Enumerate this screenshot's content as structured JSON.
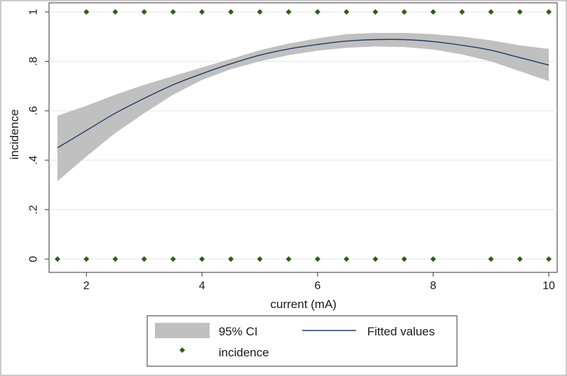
{
  "chart_data": {
    "type": "line",
    "xlabel": "current (mA)",
    "ylabel": "incidence",
    "xlim": [
      1.5,
      10
    ],
    "ylim": [
      0,
      1
    ],
    "x_ticks": [
      2,
      4,
      6,
      8,
      10
    ],
    "y_ticks": [
      {
        "value": 0,
        "label": "0"
      },
      {
        "value": 0.2,
        "label": ".2"
      },
      {
        "value": 0.4,
        "label": ".4"
      },
      {
        "value": 0.6,
        "label": ".6"
      },
      {
        "value": 0.8,
        "label": ".8"
      },
      {
        "value": 1,
        "label": "1"
      }
    ],
    "grid": "horizontal",
    "legend_position": "bottom",
    "legend": {
      "ci_label": "95% CI",
      "fit_label": "Fitted values",
      "points_label": "incidence"
    },
    "colors": {
      "ci_band": "#c0c0c0",
      "fit_line": "#1f3a68",
      "points": "#2e5e1a",
      "plot_background": "#ffffff",
      "frame": "#333333",
      "grid": "#e6e6e6"
    },
    "fitted_curve": {
      "x": [
        1.5,
        2,
        2.5,
        3,
        3.5,
        4,
        4.5,
        5,
        5.5,
        6,
        6.5,
        7,
        7.5,
        8,
        8.5,
        9,
        9.5,
        10
      ],
      "y": [
        0.45,
        0.52,
        0.59,
        0.65,
        0.705,
        0.75,
        0.79,
        0.825,
        0.85,
        0.868,
        0.882,
        0.888,
        0.888,
        0.88,
        0.865,
        0.845,
        0.815,
        0.785
      ],
      "ci_lower": [
        0.315,
        0.415,
        0.51,
        0.59,
        0.665,
        0.725,
        0.768,
        0.8,
        0.825,
        0.843,
        0.855,
        0.86,
        0.858,
        0.848,
        0.828,
        0.8,
        0.76,
        0.72
      ],
      "ci_upper": [
        0.58,
        0.62,
        0.665,
        0.705,
        0.74,
        0.775,
        0.81,
        0.845,
        0.872,
        0.893,
        0.91,
        0.915,
        0.915,
        0.91,
        0.9,
        0.885,
        0.865,
        0.85
      ]
    },
    "points": {
      "x": [
        1.5,
        2,
        2.5,
        3,
        3.5,
        4,
        4.5,
        5,
        5.5,
        6,
        6.5,
        7,
        7.5,
        8,
        9,
        9.5,
        10,
        2,
        2.5,
        3,
        3.5,
        4,
        4.5,
        5,
        5.5,
        6,
        6.5,
        7,
        7.5,
        8,
        8.5,
        9,
        9.5,
        10
      ],
      "y": [
        0,
        0,
        0,
        0,
        0,
        0,
        0,
        0,
        0,
        0,
        0,
        0,
        0,
        0,
        0,
        0,
        0,
        1,
        1,
        1,
        1,
        1,
        1,
        1,
        1,
        1,
        1,
        1,
        1,
        1,
        1,
        1,
        1,
        1
      ]
    }
  }
}
